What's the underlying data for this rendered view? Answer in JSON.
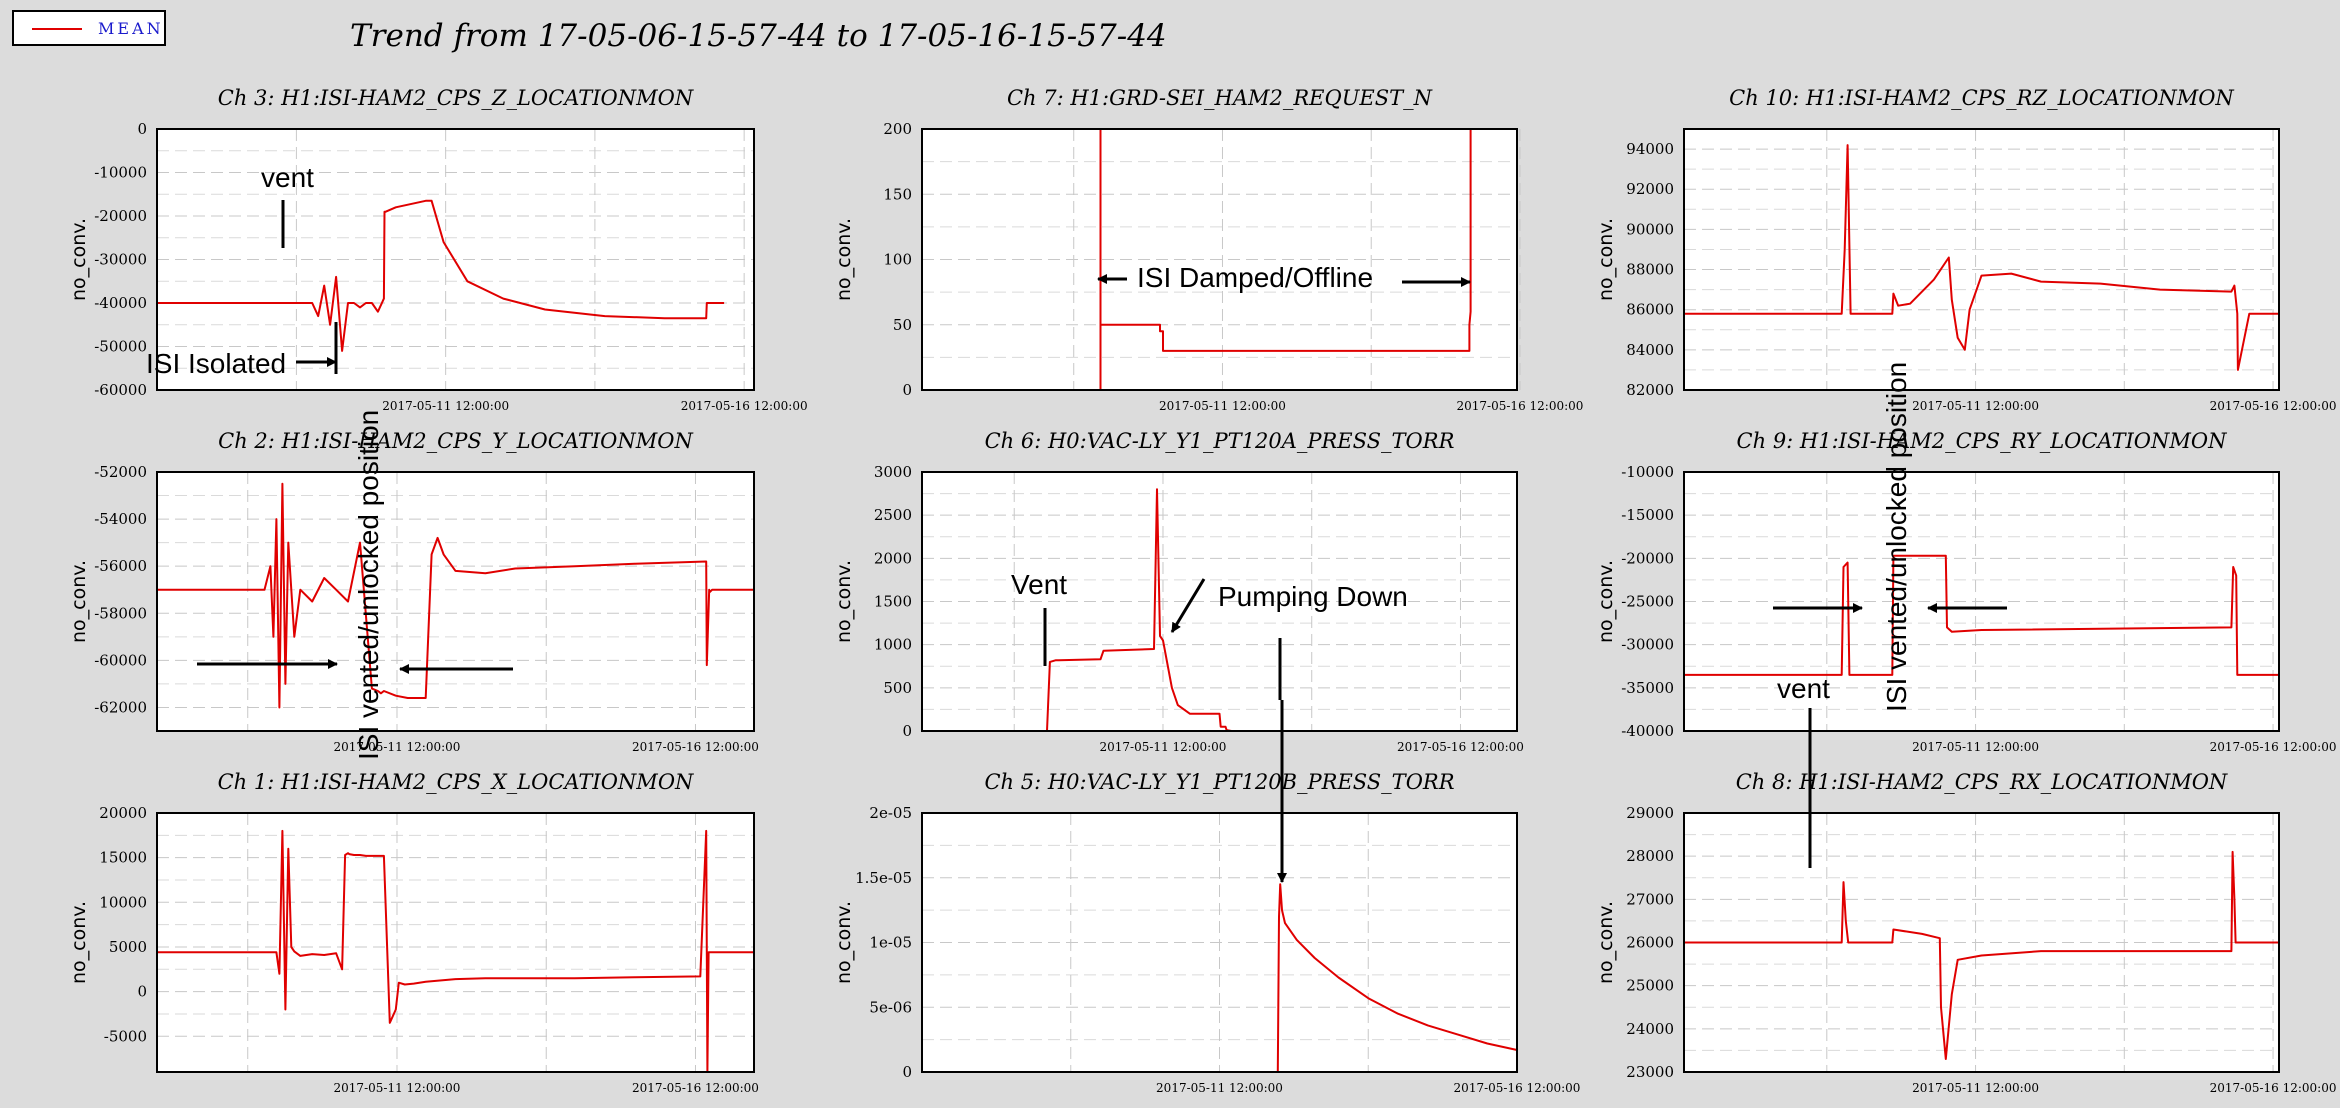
{
  "legend": {
    "label": "MEAN",
    "color": "#e00000"
  },
  "title": "Trend from 17-05-06-15-57-44 to 17-05-16-15-57-44",
  "chart_data": [
    {
      "id": "ch3",
      "type": "line",
      "title": "Ch 3: H1:ISI-HAM2_CPS_Z_LOCATIONMON",
      "ylabel": "no_conv.",
      "ylim": [
        -60000,
        0
      ],
      "yticks": [
        "0",
        "-10000",
        "-20000",
        "-30000",
        "-40000",
        "-50000",
        "-60000"
      ],
      "xlim": [
        0,
        10
      ],
      "xticks": [
        {
          "x": 4.835,
          "label": "2017-05-11 12:00:00"
        },
        {
          "x": 9.835,
          "label": "2017-05-16 12:00:00"
        }
      ],
      "series": [
        {
          "x": [
            0,
            2.6,
            2.7,
            2.8,
            2.9,
            3.0,
            3.1,
            3.2,
            3.3,
            3.4,
            3.5,
            3.6,
            3.7,
            3.8,
            3.81,
            3.83,
            4.0,
            4.5,
            4.6,
            4.8,
            5.2,
            5.8,
            6.5,
            7.5,
            8.5,
            9.2,
            9.21,
            9.5
          ],
          "y": [
            -40000,
            -40000,
            -43000,
            -36000,
            -45000,
            -34000,
            -51000,
            -40000,
            -40000,
            -41000,
            -40000,
            -40000,
            -42000,
            -39000,
            -19000,
            -19000,
            -18000,
            -16500,
            -16500,
            -26000,
            -35000,
            -39000,
            -41500,
            -43000,
            -43500,
            -43500,
            -40000,
            -40000
          ]
        }
      ]
    },
    {
      "id": "ch7",
      "type": "line",
      "title": "Ch 7: H1:GRD-SEI_HAM2_REQUEST_N",
      "ylabel": "no_conv.",
      "ylim": [
        0,
        200
      ],
      "yticks": [
        "0",
        "50",
        "100",
        "150",
        "200"
      ],
      "xlim": [
        0,
        10
      ],
      "xticks": [
        {
          "x": 5.05,
          "label": "2017-05-11 12:00:00"
        },
        {
          "x": 10.05,
          "label": "2017-05-16 12:00:00"
        }
      ],
      "series": [
        {
          "x": [
            3.0,
            3.0,
            3.0,
            4.0,
            4.0,
            4.05,
            4.05,
            4.1,
            4.1,
            9.2,
            9.2,
            9.22,
            9.22,
            9.25
          ],
          "y": [
            0,
            200,
            50,
            50,
            45,
            45,
            30,
            30,
            30,
            30,
            50,
            60,
            200,
            200
          ]
        }
      ]
    },
    {
      "id": "ch10",
      "type": "line",
      "title": "Ch 10: H1:ISI-HAM2_CPS_RZ_LOCATIONMON",
      "ylabel": "no_conv.",
      "ylim": [
        82000,
        95000
      ],
      "yticks": [
        "94000",
        "92000",
        "90000",
        "88000",
        "86000",
        "84000",
        "82000"
      ],
      "xlim": [
        0,
        10
      ],
      "xticks": [
        {
          "x": 4.9,
          "label": "2017-05-11 12:00:00"
        },
        {
          "x": 9.9,
          "label": "2017-05-16 12:00:00"
        }
      ],
      "series": [
        {
          "x": [
            0,
            2.65,
            2.7,
            2.75,
            2.8,
            3.5,
            3.52,
            3.6,
            3.8,
            4.2,
            4.45,
            4.5,
            4.6,
            4.72,
            4.8,
            5.0,
            5.5,
            6.0,
            7.0,
            8.0,
            9.2,
            9.25,
            9.3,
            9.31,
            9.5,
            10
          ],
          "y": [
            85800,
            85800,
            89000,
            94200,
            85800,
            85800,
            86800,
            86200,
            86300,
            87500,
            88600,
            86500,
            84600,
            84000,
            86000,
            87700,
            87800,
            87400,
            87300,
            87000,
            86900,
            87200,
            85800,
            83000,
            85800,
            85800
          ]
        }
      ]
    },
    {
      "id": "ch2",
      "type": "line",
      "title": "Ch 2: H1:ISI-HAM2_CPS_Y_LOCATIONMON",
      "ylabel": "no_conv.",
      "ylim": [
        -63000,
        -52000
      ],
      "yticks": [
        "-52000",
        "-54000",
        "-56000",
        "-58000",
        "-60000",
        "-62000"
      ],
      "xlim": [
        0,
        10
      ],
      "xticks": [
        {
          "x": 4.02,
          "label": "2017-05-11 12:00:00"
        },
        {
          "x": 9.02,
          "label": "2017-05-16 12:00:00"
        }
      ],
      "series": [
        {
          "x": [
            0,
            1.8,
            1.9,
            1.95,
            2.0,
            2.05,
            2.1,
            2.15,
            2.2,
            2.3,
            2.4,
            2.6,
            2.8,
            3.0,
            3.2,
            3.4,
            3.6,
            3.7,
            3.75,
            3.8,
            4.0,
            4.2,
            4.5,
            4.6,
            4.7,
            4.8,
            5.0,
            5.5,
            6.0,
            7.0,
            8.0,
            9.2,
            9.21,
            9.25,
            9.26,
            9.3,
            10
          ],
          "y": [
            -57000,
            -57000,
            -56000,
            -59000,
            -54000,
            -62000,
            -52500,
            -61000,
            -55000,
            -59000,
            -57000,
            -57500,
            -56500,
            -57000,
            -57500,
            -55000,
            -61200,
            -61300,
            -61400,
            -61300,
            -61500,
            -61600,
            -61600,
            -55500,
            -54800,
            -55500,
            -56200,
            -56300,
            -56100,
            -56000,
            -55900,
            -55800,
            -60200,
            -57000,
            -57100,
            -57000,
            -57000
          ]
        }
      ]
    },
    {
      "id": "ch6",
      "type": "line",
      "title": "Ch 6: H0:VAC-LY_Y1_PT120A_PRESS_TORR",
      "ylabel": "no_conv.",
      "ylim": [
        0,
        3000
      ],
      "yticks": [
        "0",
        "500",
        "1000",
        "1500",
        "2000",
        "2500",
        "3000"
      ],
      "xlim": [
        0,
        10
      ],
      "xticks": [
        {
          "x": 4.05,
          "label": "2017-05-11 12:00:00"
        },
        {
          "x": 9.05,
          "label": "2017-05-16 12:00:00"
        }
      ],
      "series": [
        {
          "x": [
            0,
            2.1,
            2.15,
            2.25,
            2.3,
            3.0,
            3.05,
            3.9,
            3.95,
            4.0,
            4.05,
            4.2,
            4.3,
            4.5,
            5.0,
            5.02,
            5.1,
            5.12,
            5.2,
            10
          ],
          "y": [
            0,
            0,
            800,
            820,
            820,
            830,
            930,
            950,
            2800,
            1100,
            1050,
            500,
            300,
            200,
            200,
            50,
            50,
            10,
            0,
            0
          ]
        }
      ]
    },
    {
      "id": "ch9",
      "type": "line",
      "title": "Ch 9: H1:ISI-HAM2_CPS_RY_LOCATIONMON",
      "ylabel": "no_conv.",
      "ylim": [
        -40000,
        -10000
      ],
      "yticks": [
        "-10000",
        "-15000",
        "-20000",
        "-25000",
        "-30000",
        "-35000",
        "-40000"
      ],
      "xlim": [
        0,
        10
      ],
      "xticks": [
        {
          "x": 4.9,
          "label": "2017-05-11 12:00:00"
        },
        {
          "x": 9.9,
          "label": "2017-05-16 12:00:00"
        }
      ],
      "series": [
        {
          "x": [
            0,
            2.65,
            2.68,
            2.75,
            2.78,
            3.5,
            3.52,
            4.4,
            4.42,
            4.5,
            5.0,
            9.2,
            9.23,
            9.28,
            9.3,
            10
          ],
          "y": [
            -33500,
            -33500,
            -21000,
            -20500,
            -33500,
            -33500,
            -19700,
            -19700,
            -28000,
            -28500,
            -28300,
            -28000,
            -21000,
            -22000,
            -33500,
            -33500
          ]
        }
      ]
    },
    {
      "id": "ch1",
      "type": "line",
      "title": "Ch 1: H1:ISI-HAM2_CPS_X_LOCATIONMON",
      "ylabel": "no_conv.",
      "ylim": [
        -9000,
        20000
      ],
      "yticks": [
        "20000",
        "15000",
        "10000",
        "5000",
        "0",
        "-5000"
      ],
      "xlim": [
        0,
        10
      ],
      "xticks": [
        {
          "x": 4.02,
          "label": "2017-05-11 12:00:00"
        },
        {
          "x": 9.02,
          "label": "2017-05-16 12:00:00"
        }
      ],
      "series": [
        {
          "x": [
            0,
            2.0,
            2.05,
            2.1,
            2.15,
            2.2,
            2.25,
            2.3,
            2.4,
            2.6,
            2.8,
            3.0,
            3.1,
            3.15,
            3.2,
            3.22,
            3.3,
            3.4,
            3.5,
            3.6,
            3.7,
            3.8,
            3.9,
            4.0,
            4.05,
            4.15,
            4.3,
            4.5,
            5.0,
            5.5,
            6.0,
            7.0,
            8.0,
            9.1,
            9.2,
            9.22,
            9.24,
            9.26,
            9.3,
            10
          ],
          "y": [
            4400,
            4400,
            2000,
            18000,
            -2000,
            16000,
            5000,
            4500,
            4000,
            4200,
            4100,
            4300,
            2500,
            15300,
            15500,
            15400,
            15300,
            15300,
            15200,
            15200,
            15200,
            15200,
            -3500,
            -2000,
            1000,
            800,
            900,
            1100,
            1400,
            1500,
            1500,
            1500,
            1600,
            1700,
            18000,
            -9000,
            4400,
            4400,
            4400,
            4400
          ]
        }
      ]
    },
    {
      "id": "ch5",
      "type": "line",
      "title": "Ch 5: H0:VAC-LY_Y1_PT120B_PRESS_TORR",
      "ylabel": "no_conv.",
      "ylim": [
        0,
        2e-05
      ],
      "yticks": [
        "2e-05",
        "1.5e-05",
        "1e-05",
        "5e-06",
        "0"
      ],
      "xlim": [
        0,
        10
      ],
      "xticks": [
        {
          "x": 5.0,
          "label": "2017-05-11 12:00:00"
        },
        {
          "x": 10.0,
          "label": "2017-05-16 12:00:00"
        }
      ],
      "series": [
        {
          "x": [
            0,
            5.98,
            6.0,
            6.02,
            6.05,
            6.1,
            6.3,
            6.6,
            7.0,
            7.5,
            8.0,
            8.5,
            9.0,
            9.5,
            10
          ],
          "y": [
            0,
            0,
            1.2e-05,
            1.45e-05,
            1.25e-05,
            1.15e-05,
            1.02e-05,
            8.8e-06,
            7.3e-06,
            5.7e-06,
            4.5e-06,
            3.6e-06,
            2.9e-06,
            2.2e-06,
            1.7e-06
          ]
        }
      ]
    },
    {
      "id": "ch8",
      "type": "line",
      "title": "Ch 8: H1:ISI-HAM2_CPS_RX_LOCATIONMON",
      "ylabel": "no_conv.",
      "ylim": [
        23000,
        29000
      ],
      "yticks": [
        "29000",
        "28000",
        "27000",
        "26000",
        "25000",
        "24000",
        "23000"
      ],
      "xlim": [
        0,
        10
      ],
      "xticks": [
        {
          "x": 4.9,
          "label": "2017-05-11 12:00:00"
        },
        {
          "x": 9.9,
          "label": "2017-05-16 12:00:00"
        }
      ],
      "series": [
        {
          "x": [
            0,
            2.65,
            2.68,
            2.72,
            2.76,
            3.5,
            3.52,
            4.0,
            4.3,
            4.32,
            4.4,
            4.5,
            4.6,
            5.0,
            6.0,
            7.0,
            8.0,
            9.2,
            9.22,
            9.25,
            9.27,
            9.3,
            10
          ],
          "y": [
            26000,
            26000,
            27400,
            26500,
            26000,
            26000,
            26300,
            26200,
            26100,
            24500,
            23300,
            24800,
            25600,
            25700,
            25800,
            25800,
            25800,
            25800,
            28100,
            27000,
            26000,
            26000,
            26000
          ]
        }
      ]
    }
  ],
  "annotations": {
    "vent_ch3": "vent",
    "isi_isolated": "ISI Isolated",
    "isi_damped": "ISI Damped/Offline",
    "isi_vented_1": "ISI vented/unlocked position",
    "isi_vented_2": "ISI vented/unlocked position",
    "vent_ch6": "Vent",
    "pumping_down": "Pumping Down",
    "vent_ch9": "vent"
  }
}
